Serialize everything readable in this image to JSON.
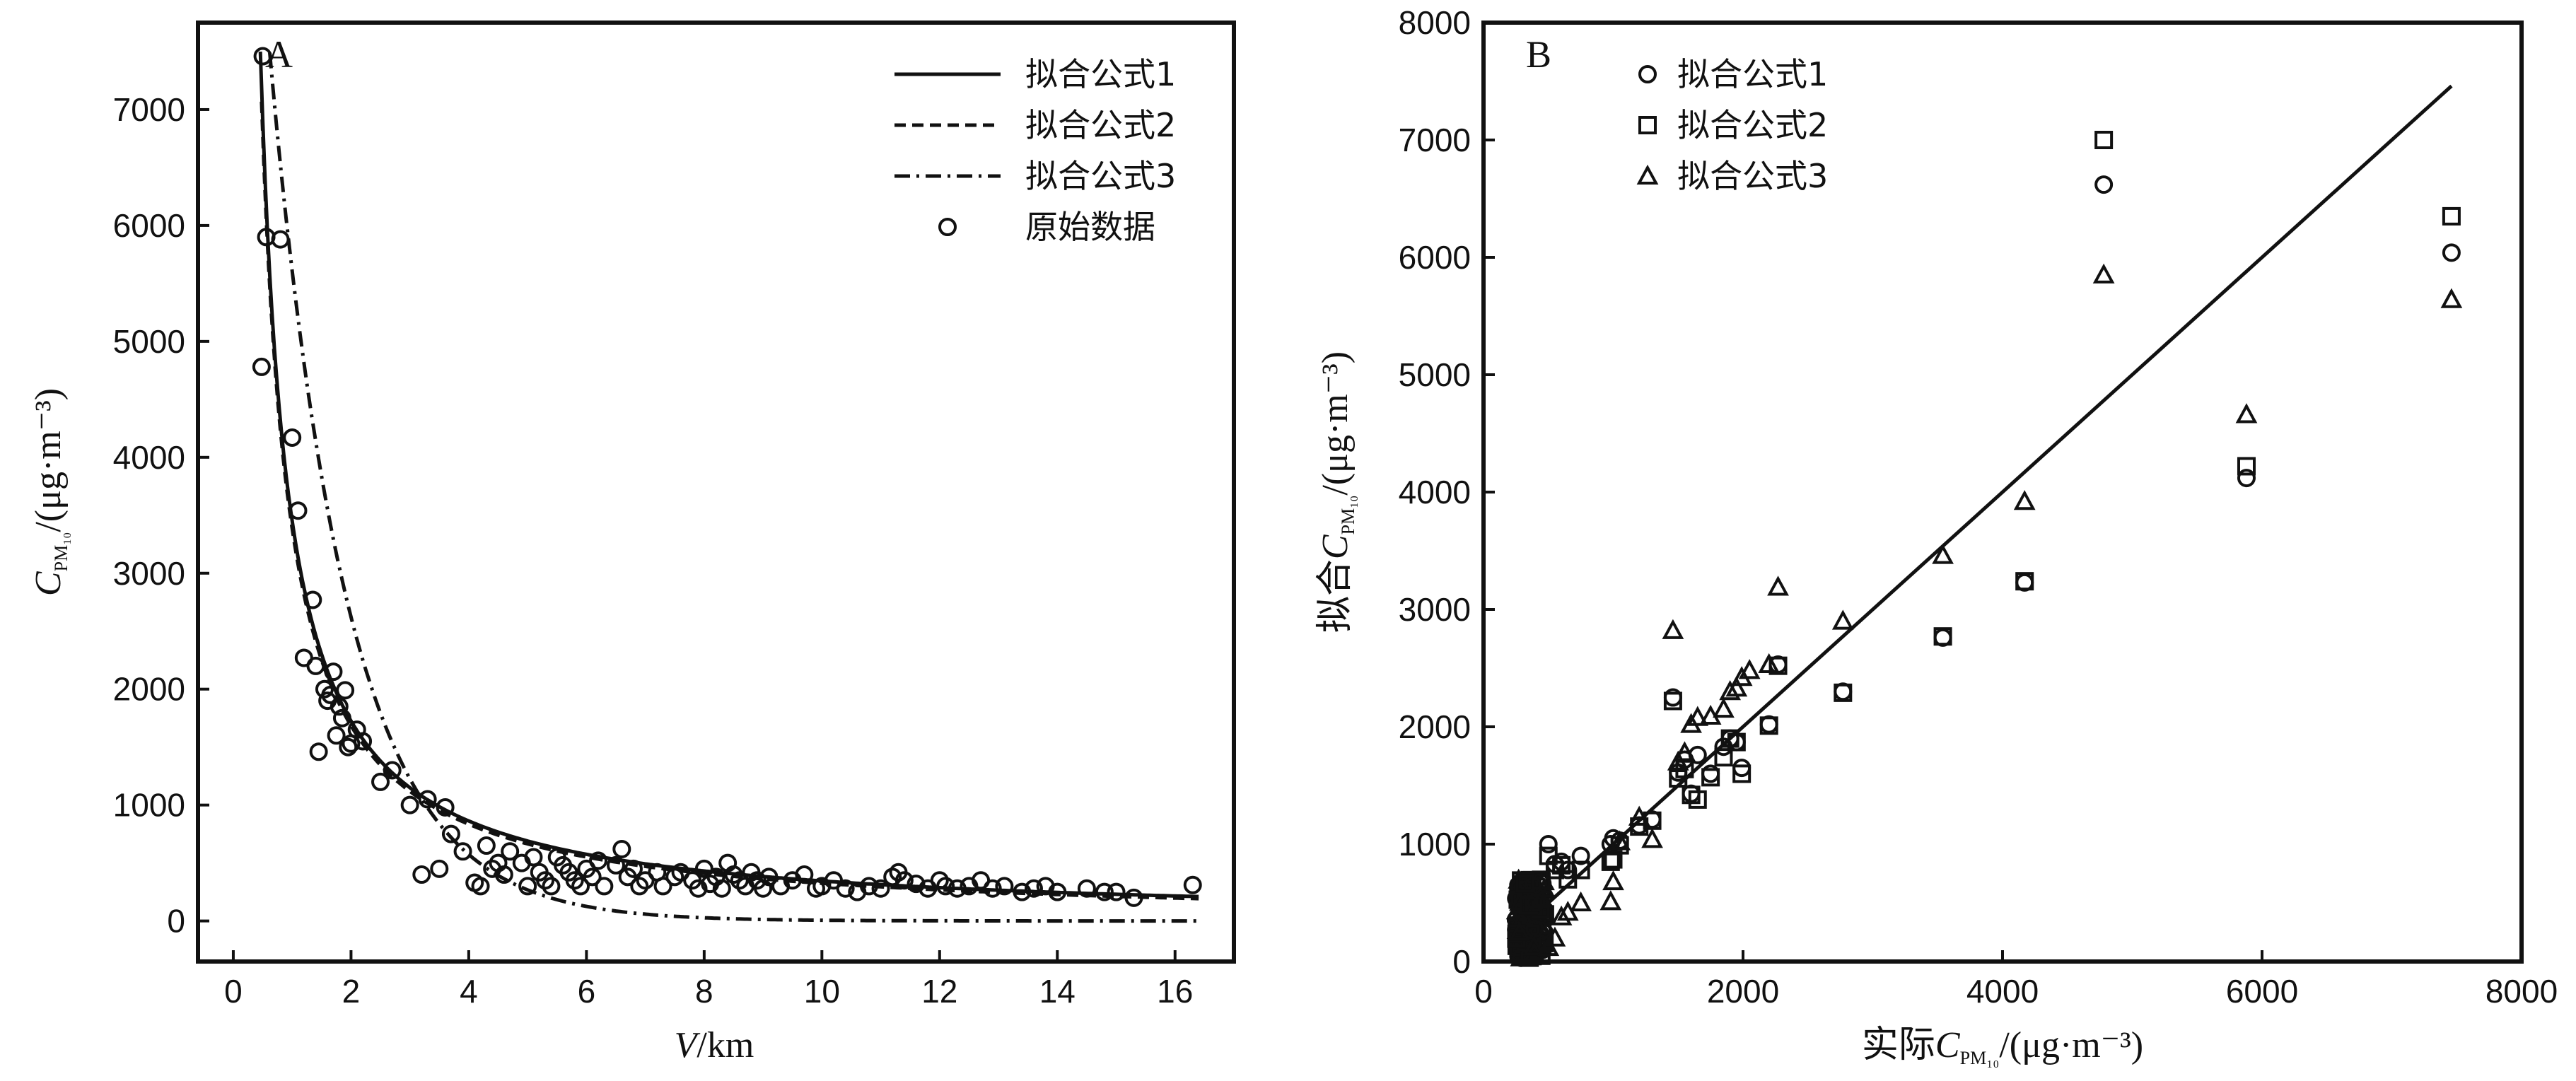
{
  "chart_data": [
    {
      "type": "scatter",
      "panel_label": "A",
      "xlabel_italic": "V",
      "xlabel_rest": "/km",
      "ylabel_main": "C",
      "ylabel_sub": "PM₁₀",
      "ylabel_rest": "/(μg·m⁻³)",
      "xlim": [
        -0.6,
        17
      ],
      "ylim": [
        -350,
        7750
      ],
      "xticks": [
        0,
        2,
        4,
        6,
        8,
        10,
        12,
        14,
        16
      ],
      "yticks": [
        0,
        1000,
        2000,
        3000,
        4000,
        5000,
        6000,
        7000
      ],
      "legend_position": "top-right",
      "legend": [
        "拟合公式1",
        "拟合公式2",
        "拟合公式3",
        "原始数据"
      ],
      "fits": [
        {
          "style": "solid",
          "formula": "3450/V",
          "x_range": [
            0.46,
            16.4
          ]
        },
        {
          "style": "dashed",
          "formula": "3400/V - 15",
          "x_range": [
            0.48,
            16.4
          ]
        },
        {
          "style": "dashdot",
          "formula": "8200*exp(-0.76*(V-0.5))",
          "x_range": [
            0.5,
            16.4
          ]
        }
      ],
      "raw_data": {
        "x": [
          0.5,
          0.48,
          0.56,
          0.8,
          1.0,
          1.1,
          1.2,
          1.35,
          1.45,
          1.4,
          1.55,
          1.6,
          1.65,
          1.7,
          1.75,
          1.8,
          1.85,
          1.9,
          1.95,
          2.0,
          2.1,
          2.2,
          2.5,
          2.7,
          3.0,
          3.2,
          3.3,
          3.5,
          3.6,
          3.7,
          3.9,
          4.1,
          4.2,
          4.3,
          4.4,
          4.5,
          4.6,
          4.7,
          4.9,
          5.0,
          5.1,
          5.2,
          5.3,
          5.4,
          5.5,
          5.6,
          5.7,
          5.8,
          5.9,
          6.0,
          6.1,
          6.2,
          6.3,
          6.5,
          6.6,
          6.7,
          6.8,
          6.9,
          7.0,
          7.2,
          7.3,
          7.5,
          7.6,
          7.8,
          7.9,
          8.0,
          8.1,
          8.2,
          8.3,
          8.4,
          8.5,
          8.6,
          8.7,
          8.8,
          8.9,
          9.0,
          9.1,
          9.3,
          9.5,
          9.7,
          9.9,
          10.0,
          10.2,
          10.4,
          10.6,
          10.8,
          11.0,
          11.2,
          11.3,
          11.4,
          11.6,
          11.8,
          12.0,
          12.1,
          12.3,
          12.5,
          12.7,
          12.9,
          13.1,
          13.4,
          13.6,
          13.8,
          14.0,
          14.5,
          14.8,
          15.0,
          15.3,
          16.3
        ],
        "y": [
          7460,
          4780,
          5900,
          5880,
          4170,
          3540,
          2270,
          2770,
          1460,
          2200,
          2000,
          1900,
          1950,
          2150,
          1600,
          1850,
          1750,
          1990,
          1500,
          1530,
          1650,
          1550,
          1200,
          1300,
          1000,
          400,
          1050,
          450,
          980,
          750,
          600,
          330,
          300,
          650,
          450,
          500,
          400,
          600,
          500,
          300,
          550,
          420,
          350,
          300,
          550,
          480,
          420,
          350,
          300,
          450,
          380,
          520,
          300,
          480,
          620,
          380,
          450,
          300,
          350,
          420,
          300,
          380,
          420,
          350,
          280,
          450,
          320,
          380,
          280,
          500,
          400,
          350,
          300,
          420,
          350,
          280,
          380,
          300,
          350,
          400,
          280,
          300,
          350,
          280,
          250,
          300,
          280,
          380,
          420,
          350,
          320,
          280,
          350,
          300,
          280,
          300,
          350,
          280,
          300,
          250,
          280,
          300,
          250,
          280,
          250,
          250,
          200,
          310
        ]
      }
    },
    {
      "type": "scatter",
      "panel_label": "B",
      "xlabel_prefix": "实际",
      "xlabel_main": "C",
      "xlabel_sub": "PM₁₀",
      "xlabel_rest": "/(μg·m⁻³)",
      "ylabel_prefix": "拟合",
      "ylabel_main": "C",
      "ylabel_sub": "PM₁₀",
      "ylabel_rest": "/(μg·m⁻³)",
      "xlim": [
        0,
        8000
      ],
      "ylim": [
        0,
        8000
      ],
      "xticks": [
        0,
        2000,
        4000,
        6000,
        8000
      ],
      "yticks": [
        0,
        1000,
        2000,
        3000,
        4000,
        5000,
        6000,
        7000,
        8000
      ],
      "legend_position": "top-left",
      "legend": [
        "拟合公式1",
        "拟合公式2",
        "拟合公式3"
      ],
      "reference_line": {
        "from": [
          250,
          250
        ],
        "to": [
          7460,
          7460
        ]
      },
      "series": [
        {
          "name": "拟合公式1",
          "marker": "circle",
          "x": [
            7460,
            4780,
            5880,
            4170,
            3540,
            2770,
            2270,
            2200,
            1990,
            1950,
            1900,
            1850,
            1750,
            1650,
            1600,
            1550,
            1500,
            1460,
            1300,
            1200,
            1050,
            1000,
            980,
            750,
            650,
            600,
            550,
            500
          ],
          "y": [
            6040,
            6620,
            4120,
            3230,
            2760,
            2300,
            2530,
            2020,
            1650,
            1870,
            1900,
            1830,
            1600,
            1760,
            1430,
            1720,
            1610,
            2250,
            1210,
            1160,
            1030,
            1050,
            1000,
            900,
            780,
            850,
            830,
            1000
          ]
        },
        {
          "name": "拟合公式2",
          "marker": "square",
          "x": [
            7460,
            4780,
            5880,
            4170,
            3540,
            2770,
            2270,
            2200,
            1990,
            1950,
            1900,
            1850,
            1750,
            1650,
            1600,
            1550,
            1500,
            1460,
            1300,
            1200,
            1050,
            1000,
            980,
            750,
            650,
            600,
            550,
            500
          ],
          "y": [
            6350,
            7000,
            4220,
            3240,
            2770,
            2290,
            2520,
            2010,
            1600,
            1870,
            1900,
            1740,
            1570,
            1380,
            1420,
            1640,
            1560,
            2220,
            1200,
            1150,
            990,
            870,
            850,
            780,
            700,
            820,
            780,
            900
          ]
        },
        {
          "name": "拟合公式3",
          "marker": "triangle",
          "x": [
            7460,
            4780,
            5880,
            4170,
            3540,
            2770,
            2270,
            2200,
            2050,
            1990,
            1950,
            1900,
            1850,
            1750,
            1650,
            1600,
            1550,
            1500,
            1460,
            1300,
            1200,
            1050,
            1000,
            980,
            750,
            650,
            600,
            550,
            500
          ],
          "y": [
            5640,
            5850,
            4660,
            3920,
            3460,
            2900,
            3190,
            2530,
            2480,
            2420,
            2330,
            2300,
            2150,
            2090,
            2080,
            2020,
            1780,
            1700,
            2820,
            1040,
            1230,
            1020,
            680,
            510,
            500,
            420,
            380,
            200,
            120
          ]
        }
      ],
      "low_cluster": {
        "x_range": [
          250,
          480
        ],
        "y_range": [
          30,
          700
        ],
        "count": 180
      }
    }
  ]
}
